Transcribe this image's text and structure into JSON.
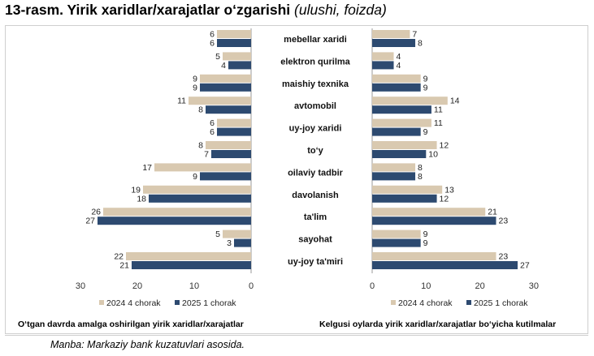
{
  "title": {
    "main": "13-rasm. Yirik xaridlar/xarajatlar o‘zgarishi",
    "sub": "(ulushi, foizda)"
  },
  "colors": {
    "series1": "#d9c9b0",
    "series2": "#2d4a70",
    "grid": "#d9d9d9",
    "axis": "#808080"
  },
  "chart_data": [
    {
      "type": "bar",
      "orientation": "horizontal",
      "direction": "right-to-left",
      "caption": "O‘tgan davrda amalga oshirilgan yirik xaridlar/xarajatlar",
      "categories": [
        "mebellar xaridi",
        "elektron qurilma",
        "maishiy texnika",
        "avtomobil",
        "uy-joy xaridi",
        "to‘y",
        "oilaviy tadbir",
        "davolanish",
        "ta'lim",
        "sayohat",
        "uy-joy ta'miri"
      ],
      "series": [
        {
          "name": "2024 4 chorak",
          "values": [
            6,
            5,
            9,
            11,
            6,
            8,
            17,
            19,
            26,
            5,
            22
          ]
        },
        {
          "name": "2025 1 chorak",
          "values": [
            6,
            4,
            9,
            8,
            6,
            7,
            9,
            18,
            27,
            3,
            21
          ]
        }
      ],
      "xlim": [
        0,
        30
      ],
      "xticks": [
        30,
        20,
        10,
        0
      ],
      "legend": "bottom"
    },
    {
      "type": "bar",
      "orientation": "horizontal",
      "direction": "left-to-right",
      "caption": "Kelgusi oylarda yirik xaridlar/xarajatlar bo‘yicha kutilmalar",
      "categories": [
        "mebellar xaridi",
        "elektron qurilma",
        "maishiy texnika",
        "avtomobil",
        "uy-joy xaridi",
        "to‘y",
        "oilaviy tadbir",
        "davolanish",
        "ta'lim",
        "sayohat",
        "uy-joy ta'miri"
      ],
      "series": [
        {
          "name": "2024 4 chorak",
          "values": [
            7,
            4,
            9,
            14,
            11,
            12,
            8,
            13,
            21,
            9,
            23
          ]
        },
        {
          "name": "2025 1 chorak",
          "values": [
            8,
            4,
            9,
            11,
            9,
            10,
            8,
            12,
            23,
            9,
            27
          ]
        }
      ],
      "xlim": [
        0,
        30
      ],
      "xticks": [
        0,
        10,
        20,
        30
      ],
      "legend": "bottom"
    }
  ],
  "source": "Manba: Markaziy bank kuzatuvlari asosida."
}
